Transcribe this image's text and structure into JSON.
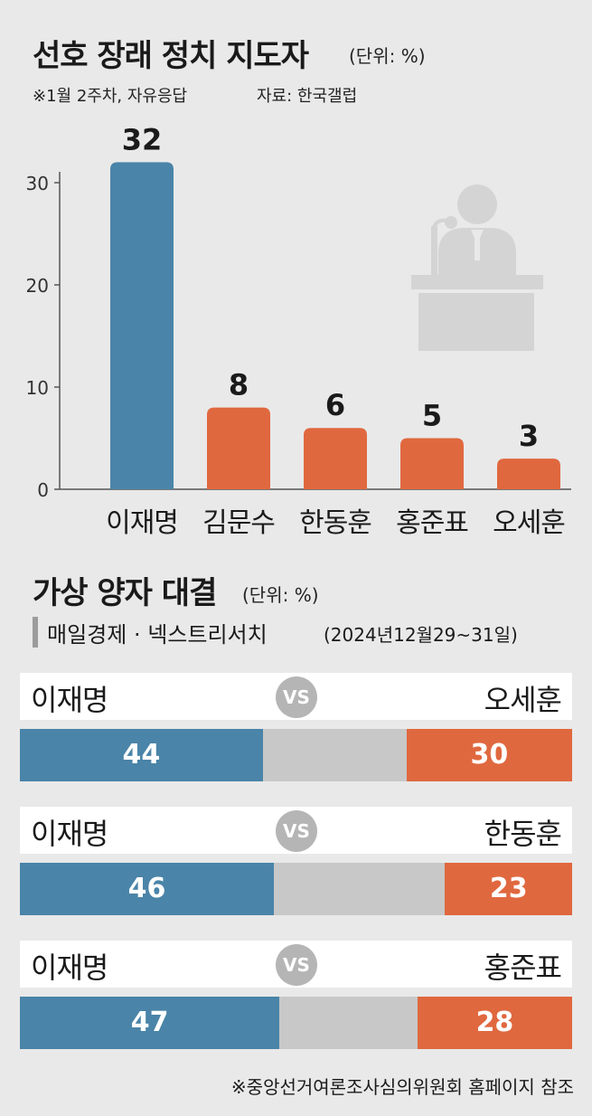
{
  "chart_data": [
    {
      "type": "bar",
      "title": "선호 장래 정치 지도자",
      "unit_note": "(단위: %)",
      "subtitle": "※1월 2주차, 자유응답",
      "source": "자료: 한국갤럽",
      "categories": [
        "이재명",
        "김문수",
        "한동훈",
        "홍준표",
        "오세훈"
      ],
      "values": [
        32,
        8,
        6,
        5,
        3
      ],
      "value_labels": [
        "32",
        "8",
        "6",
        "5",
        "3"
      ],
      "yticks": [
        "30",
        "20",
        "10",
        "0"
      ],
      "ylim": [
        0,
        32
      ],
      "colors": [
        "#4a84a8",
        "#e0683f",
        "#e0683f",
        "#e0683f",
        "#e0683f"
      ],
      "grid": false
    },
    {
      "type": "bar",
      "orientation": "horizontal-stacked",
      "title": "가상 양자 대결",
      "unit_note": "(단위: %)",
      "source": "매일경제 · 넥스트리서치",
      "period": "(2024년12월29~31일)",
      "vs_label": "VS",
      "matchups": [
        {
          "left": "이재명",
          "right": "오세훈",
          "left_value": 44,
          "right_value": 30,
          "left_label": "44",
          "right_label": "30"
        },
        {
          "left": "이재명",
          "right": "한동훈",
          "left_value": 46,
          "right_value": 23,
          "left_label": "46",
          "right_label": "23"
        },
        {
          "left": "이재명",
          "right": "홍준표",
          "left_value": 47,
          "right_value": 28,
          "left_label": "47",
          "right_label": "28"
        }
      ],
      "colors": {
        "left": "#4a84a8",
        "other": "#c8c8c8",
        "right": "#e0683f"
      }
    }
  ],
  "footer": "※중앙선거여론조사심의위원회 홈페이지 참조"
}
